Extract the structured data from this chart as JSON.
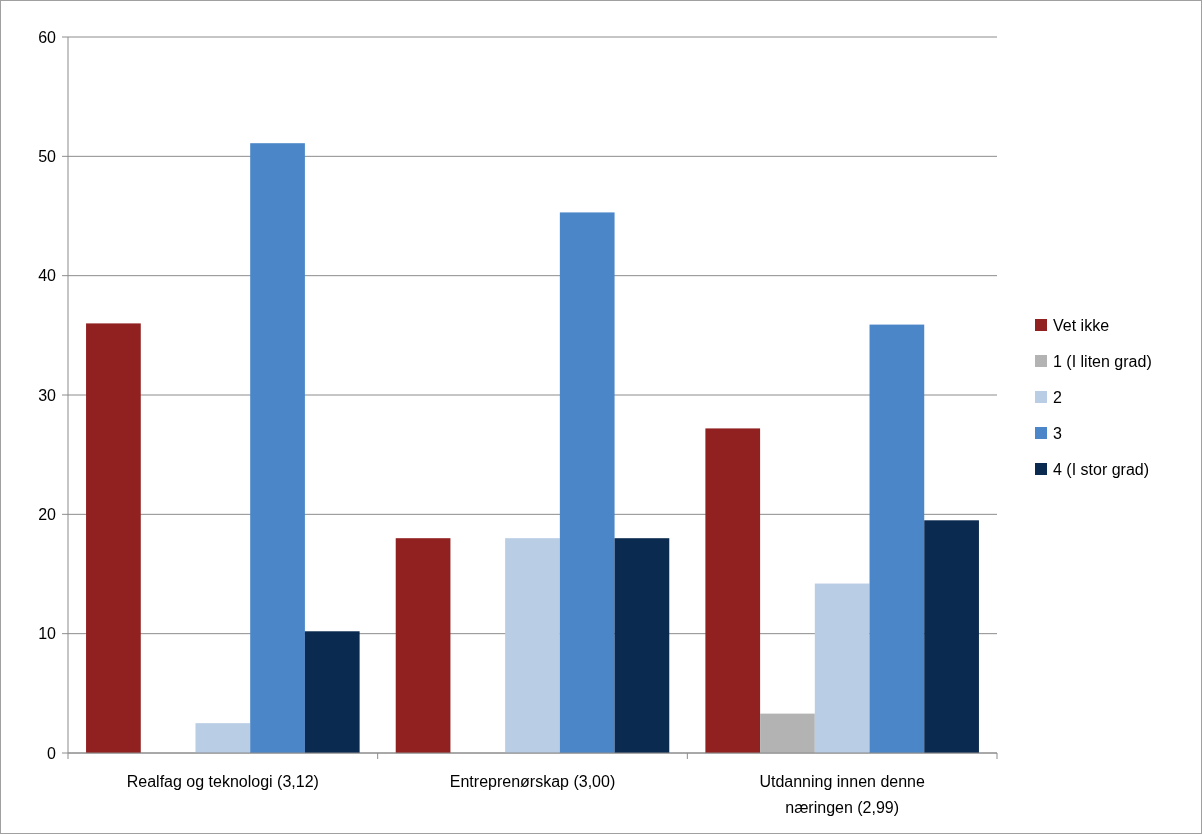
{
  "chart_data": {
    "type": "bar",
    "categories": [
      "Realfag og teknologi (3,12)",
      "Entreprenørskap (3,00)",
      "Utdanning innen denne næringen (2,99)"
    ],
    "series": [
      {
        "name": "Vet ikke",
        "color": "#912020",
        "values": [
          36,
          18,
          27.2
        ]
      },
      {
        "name": "1 (I liten grad)",
        "color": "#b3b3b3",
        "values": [
          0,
          0,
          3.3
        ]
      },
      {
        "name": "2",
        "color": "#b9cde5",
        "values": [
          2.5,
          18,
          14.2
        ]
      },
      {
        "name": "3",
        "color": "#4a86c8",
        "values": [
          51.1,
          45.3,
          35.9
        ]
      },
      {
        "name": "4 (I stor grad)",
        "color": "#0b2a4f",
        "values": [
          10.2,
          18,
          19.5
        ]
      }
    ],
    "ylim": [
      0,
      60
    ],
    "yticks": [
      0,
      10,
      20,
      30,
      40,
      50,
      60
    ],
    "grid": "y",
    "legend": "right"
  }
}
